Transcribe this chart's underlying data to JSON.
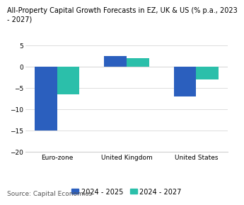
{
  "title_line1": "All-Property Capital Growth Forecasts in EZ, UK & US (% p.a., 2023",
  "title_line2": "- 2027)",
  "categories": [
    "Euro-zone",
    "United Kingdom",
    "United States"
  ],
  "series_2025": [
    -15.0,
    2.5,
    -7.0
  ],
  "series_2027": [
    -6.5,
    2.0,
    -3.0
  ],
  "color_2025": "#2b5fbe",
  "color_2027": "#2bbfaa",
  "ylim": [
    -20,
    5
  ],
  "yticks": [
    -20,
    -15,
    -10,
    -5,
    0,
    5
  ],
  "legend_labels": [
    "2024 - 2025",
    "2024 - 2027"
  ],
  "source": "Source: Capital Economics",
  "bar_width": 0.32,
  "title_fontsize": 7.0,
  "tick_fontsize": 6.5,
  "legend_fontsize": 7.0,
  "source_fontsize": 6.5
}
